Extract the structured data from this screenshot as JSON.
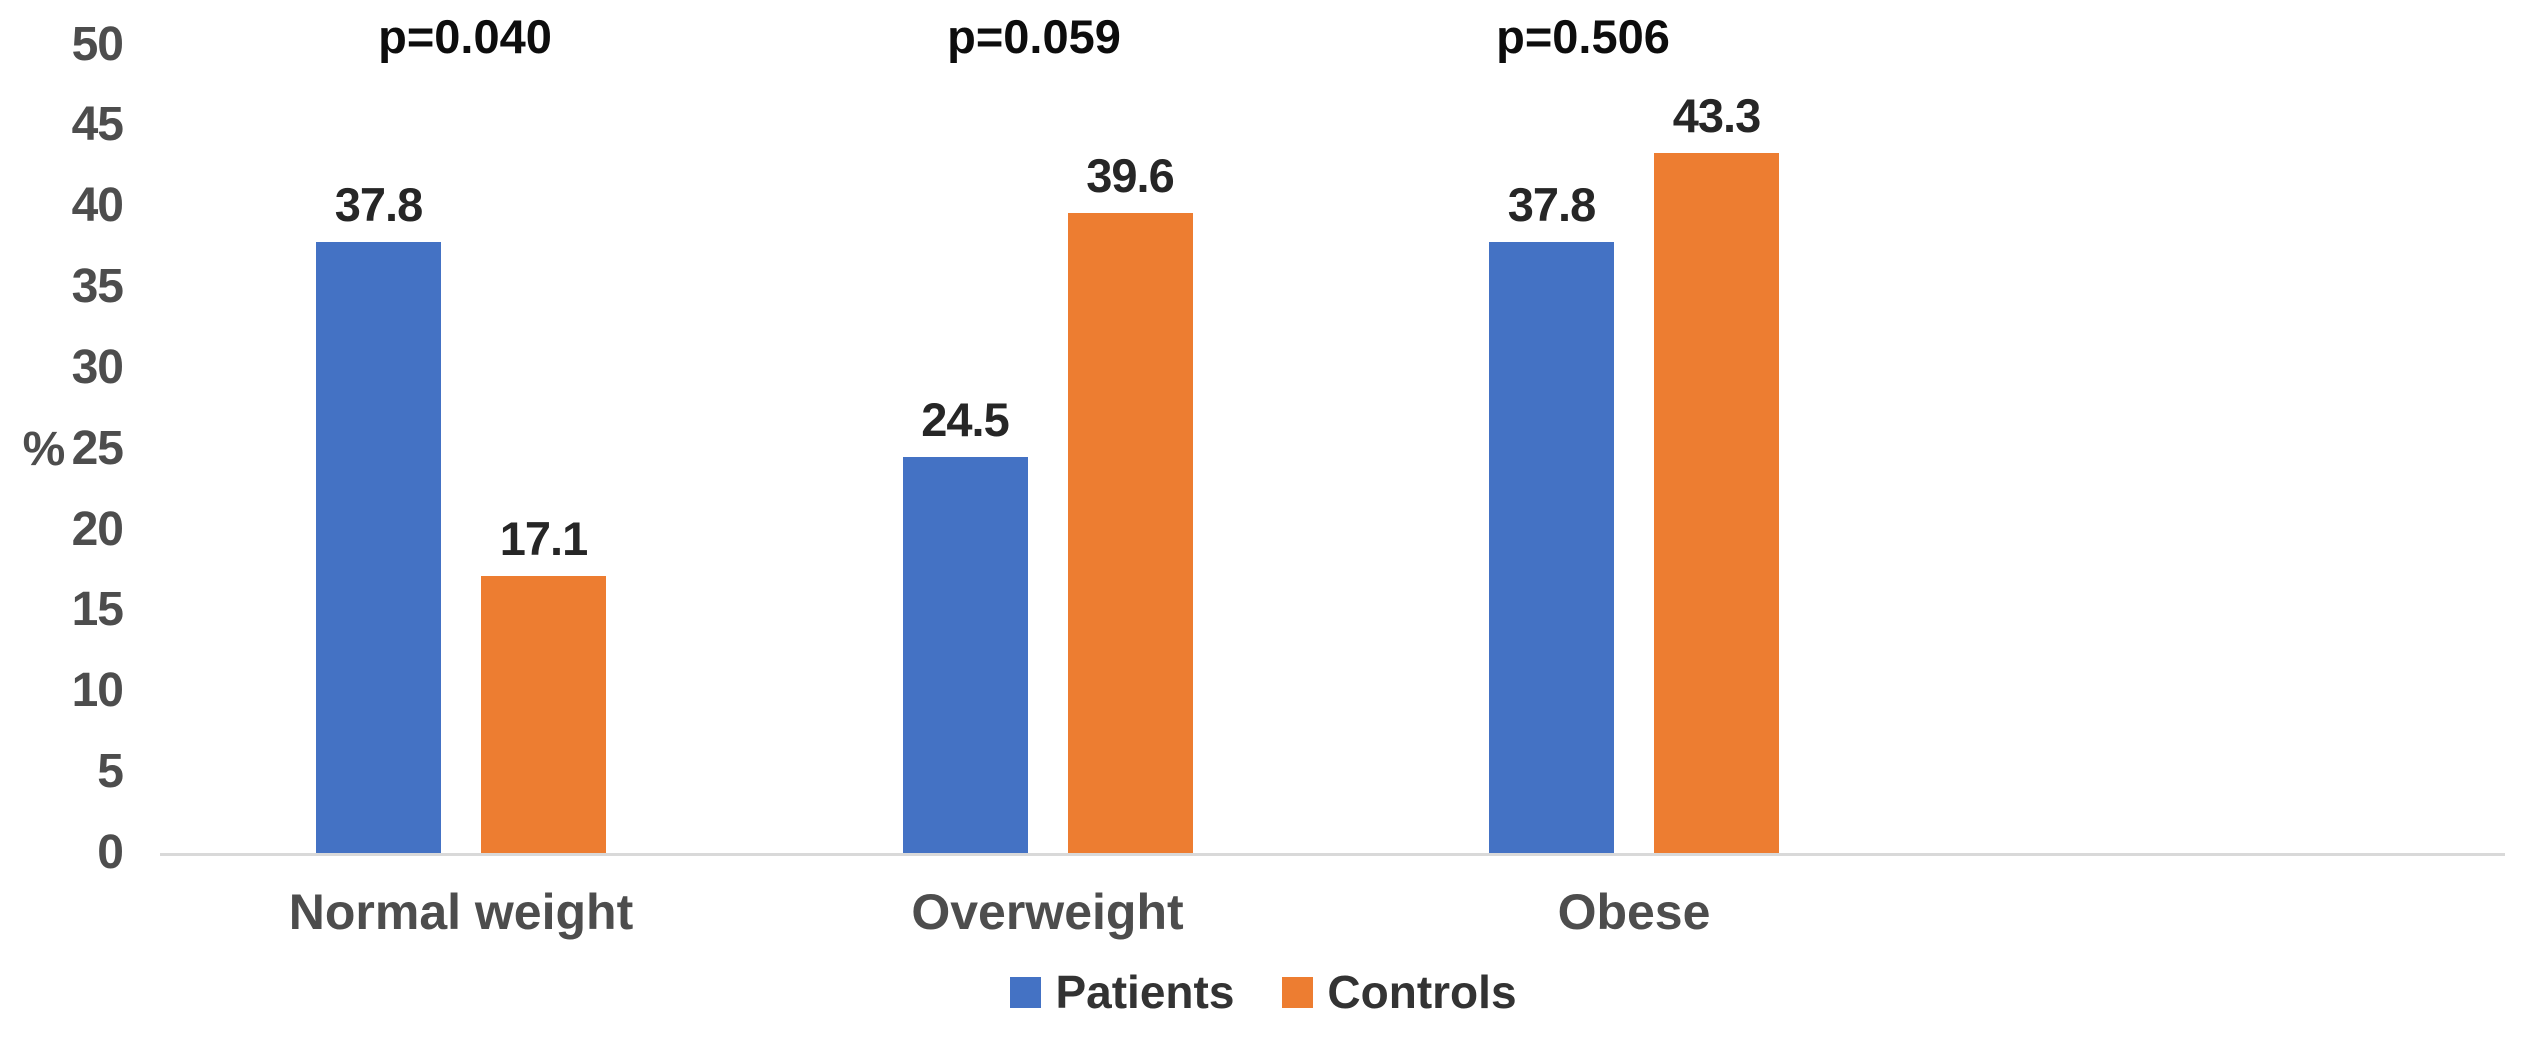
{
  "chart_data": {
    "type": "bar",
    "title": "",
    "categories": [
      "Normal weight",
      "Overweight",
      "Obese"
    ],
    "series": [
      {
        "name": "Patients",
        "color": "#4472C4",
        "values": [
          37.8,
          24.5,
          37.8
        ]
      },
      {
        "name": "Controls",
        "color": "#ED7D31",
        "values": [
          17.1,
          39.6,
          43.3
        ]
      }
    ],
    "value_labels": [
      [
        "37.8",
        "24.5",
        "37.8"
      ],
      [
        "17.1",
        "39.6",
        "43.3"
      ]
    ],
    "p_values": [
      "p=0.040",
      "p=0.059",
      "p=0.506"
    ],
    "xlabel": "",
    "ylabel": "%",
    "ylim": [
      0,
      50
    ],
    "ytick_step": 5,
    "yticks": [
      "0",
      "5",
      "10",
      "15",
      "20",
      "25",
      "30",
      "35",
      "40",
      "45",
      "50"
    ],
    "grid": false,
    "legend_position": "bottom-center",
    "axis_line_color": "#d9d9d9",
    "tick_text_color": "#4d4d4d",
    "value_text_color": "#262626"
  }
}
